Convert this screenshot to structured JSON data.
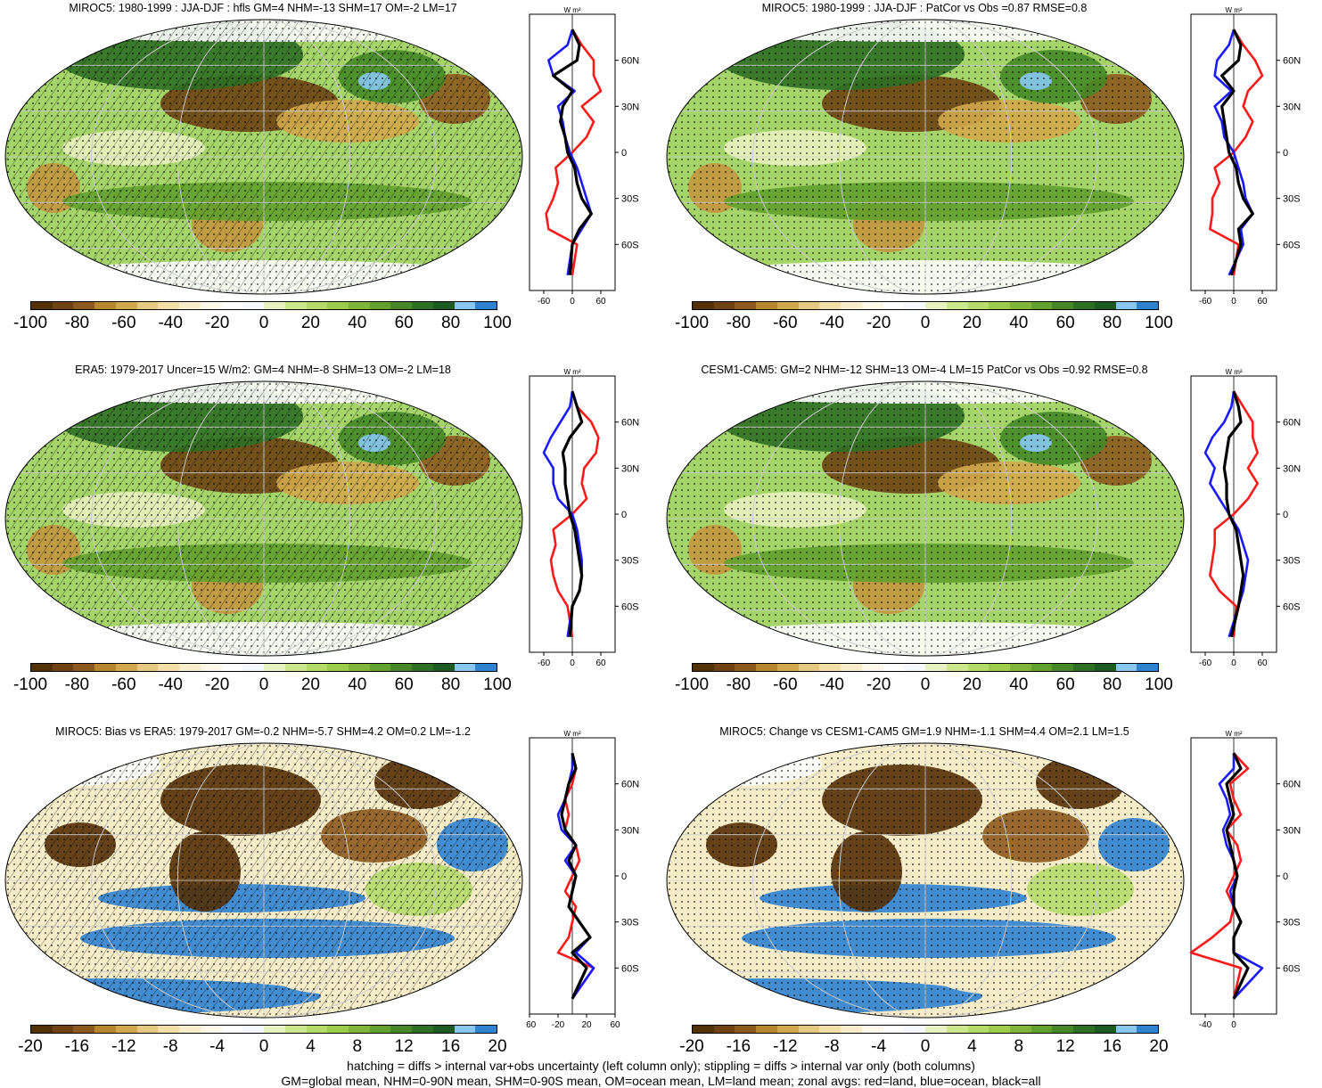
{
  "footer": {
    "line1": "hatching = diffs > internal var+obs uncertainty (left column only); stippling = diffs > internal var only (both columns)",
    "line2": "GM=global mean, NHM=0-90N mean, SHM=0-90S mean, OM=ocean mean, LM=land mean; zonal avgs: red=land, blue=ocean, black=all"
  },
  "zonal_common": {
    "units": "W m²",
    "lat_ticks": [
      "60N",
      "30N",
      "0",
      "30S",
      "60S"
    ],
    "lat_values": [
      60,
      30,
      0,
      -30,
      -60
    ]
  },
  "colors": {
    "land": "#ff1a1a",
    "ocean": "#1a1aff",
    "all": "#000000",
    "palette": [
      "#543005",
      "#6e4212",
      "#8c5a1e",
      "#b8862c",
      "#d2a84e",
      "#e6c883",
      "#f2dea6",
      "#f8edc9",
      "#fcf7e8",
      "#ffffff",
      "#f4f8ff",
      "#e8f2c0",
      "#cce88e",
      "#b5dc6b",
      "#9ccc4c",
      "#7fb63a",
      "#62a02f",
      "#468828",
      "#2f6f25",
      "#1c5a20",
      "#88c8f0",
      "#2f82d0"
    ]
  },
  "panels": [
    {
      "id": "p1",
      "title": "MIROC5: 1980-1999 : JJA-DJF : hfls GM=4 NHM=-13 SHM=17 OM=-2 LM=17",
      "colorbar_labels": [
        "-100",
        "-80",
        "-60",
        "-40",
        "-20",
        "0",
        "20",
        "40",
        "60",
        "80",
        "100"
      ],
      "zonal_xticks": [
        "-60",
        "0",
        "60"
      ]
    },
    {
      "id": "p2",
      "title": "MIROC5: 1980-1999 : JJA-DJF : PatCor vs Obs =0.87 RMSE=0.8",
      "colorbar_labels": [
        "-100",
        "-80",
        "-60",
        "-40",
        "-20",
        "0",
        "20",
        "40",
        "60",
        "80",
        "100"
      ],
      "zonal_xticks": [
        "-60",
        "0",
        "60"
      ]
    },
    {
      "id": "p3",
      "title": "ERA5: 1979-2017 Uncer=15 W/m2: GM=4 NHM=-8 SHM=13 OM=-2 LM=18",
      "colorbar_labels": [
        "-100",
        "-80",
        "-60",
        "-40",
        "-20",
        "0",
        "20",
        "40",
        "60",
        "80",
        "100"
      ],
      "zonal_xticks": [
        "-60",
        "0",
        "60"
      ]
    },
    {
      "id": "p4",
      "title": "CESM1-CAM5: GM=2 NHM=-12 SHM=13 OM=-4 LM=15 PatCor vs Obs =0.92 RMSE=0.8",
      "colorbar_labels": [
        "-100",
        "-80",
        "-60",
        "-40",
        "-20",
        "0",
        "20",
        "40",
        "60",
        "80",
        "100"
      ],
      "zonal_xticks": [
        "-60",
        "0",
        "60"
      ]
    },
    {
      "id": "p5",
      "title": "MIROC5: Bias vs ERA5: 1979-2017 GM=-0.2 NHM=-5.7 SHM=4.2 OM=0.2 LM=-1.2",
      "colorbar_labels": [
        "-20",
        "-16",
        "-12",
        "-8",
        "-4",
        "0",
        "4",
        "8",
        "12",
        "16",
        "20"
      ],
      "zonal_xticks": [
        "-60",
        "-20",
        "20",
        "60"
      ]
    },
    {
      "id": "p6",
      "title": "MIROC5: Change vs CESM1-CAM5 GM=1.9 NHM=-1.1 SHM=4.4 OM=2.1 LM=1.5",
      "colorbar_labels": [
        "-20",
        "-16",
        "-12",
        "-8",
        "-4",
        "0",
        "4",
        "8",
        "12",
        "16",
        "20"
      ],
      "zonal_xticks": [
        "-40",
        "0"
      ]
    }
  ],
  "chart_data": [
    {
      "type": "heatmap",
      "title": "MIROC5: 1980-1999 : JJA-DJF : hfls GM=4 NHM=-13 SHM=17 OM=-2 LM=17",
      "colorbar_range": [
        -100,
        100
      ],
      "series": [
        {
          "name": "land",
          "lat": [
            -80,
            -60,
            -50,
            -40,
            -30,
            -20,
            -10,
            0,
            10,
            20,
            30,
            40,
            50,
            60,
            70,
            80
          ],
          "values": [
            0,
            10,
            -50,
            -55,
            -40,
            -30,
            -35,
            0,
            30,
            45,
            20,
            60,
            45,
            45,
            20,
            0
          ]
        },
        {
          "name": "ocean",
          "lat": [
            -80,
            -60,
            -50,
            -40,
            -30,
            -20,
            -10,
            0,
            10,
            20,
            30,
            40,
            50,
            60,
            70,
            80
          ],
          "values": [
            -10,
            0,
            20,
            40,
            30,
            20,
            10,
            -5,
            -15,
            -20,
            -30,
            5,
            -40,
            -50,
            -10,
            0
          ]
        },
        {
          "name": "all",
          "lat": [
            -80,
            -60,
            -50,
            -40,
            -30,
            -20,
            -10,
            0,
            10,
            20,
            30,
            40,
            50,
            60,
            70,
            80
          ],
          "values": [
            -5,
            0,
            15,
            40,
            20,
            10,
            5,
            -10,
            -15,
            -25,
            -20,
            0,
            -40,
            10,
            15,
            0
          ]
        }
      ]
    },
    {
      "type": "heatmap",
      "title": "MIROC5: 1980-1999 : JJA-DJF : PatCor vs Obs =0.87 RMSE=0.8",
      "colorbar_range": [
        -100,
        100
      ],
      "series": [
        {
          "name": "land",
          "lat": [
            -80,
            -60,
            -50,
            -40,
            -30,
            -20,
            -10,
            0,
            10,
            20,
            30,
            40,
            50,
            60,
            70,
            80
          ],
          "values": [
            0,
            10,
            -50,
            -45,
            -45,
            -30,
            -40,
            0,
            25,
            40,
            20,
            30,
            60,
            45,
            20,
            0
          ]
        },
        {
          "name": "ocean",
          "lat": [
            -80,
            -60,
            -50,
            -40,
            -30,
            -20,
            -10,
            0,
            10,
            20,
            30,
            40,
            50,
            60,
            70,
            80
          ],
          "values": [
            -10,
            20,
            15,
            40,
            25,
            20,
            10,
            0,
            -20,
            -25,
            -40,
            -5,
            -40,
            -35,
            -10,
            0
          ]
        },
        {
          "name": "all",
          "lat": [
            -80,
            -60,
            -50,
            -40,
            -30,
            -20,
            -10,
            0,
            10,
            20,
            30,
            40,
            50,
            60,
            70,
            80
          ],
          "values": [
            -5,
            15,
            10,
            40,
            20,
            10,
            5,
            -10,
            -15,
            -20,
            -25,
            0,
            -25,
            10,
            15,
            0
          ]
        }
      ]
    },
    {
      "type": "heatmap",
      "title": "ERA5: 1979-2017 Uncer=15 W/m2: GM=4 NHM=-8 SHM=13 OM=-2 LM=18",
      "colorbar_range": [
        -100,
        100
      ],
      "series": [
        {
          "name": "land",
          "lat": [
            -80,
            -60,
            -50,
            -40,
            -30,
            -20,
            -10,
            0,
            10,
            20,
            30,
            40,
            50,
            60,
            70,
            80
          ],
          "values": [
            0,
            -10,
            -30,
            -40,
            -45,
            -35,
            -40,
            0,
            30,
            20,
            25,
            50,
            55,
            40,
            10,
            0
          ]
        },
        {
          "name": "ocean",
          "lat": [
            -80,
            -60,
            -50,
            -40,
            -30,
            -20,
            -10,
            0,
            10,
            20,
            30,
            40,
            50,
            60,
            70,
            80
          ],
          "values": [
            -10,
            0,
            15,
            20,
            20,
            15,
            10,
            0,
            -30,
            -40,
            -40,
            -60,
            -45,
            -25,
            -5,
            0
          ]
        },
        {
          "name": "all",
          "lat": [
            -80,
            -60,
            -50,
            -40,
            -30,
            -20,
            -10,
            0,
            10,
            20,
            30,
            40,
            50,
            60,
            70,
            80
          ],
          "values": [
            -5,
            0,
            15,
            20,
            15,
            10,
            5,
            -5,
            -10,
            -15,
            -15,
            -20,
            -5,
            20,
            10,
            0
          ]
        }
      ]
    },
    {
      "type": "heatmap",
      "title": "CESM1-CAM5: GM=2 NHM=-12 SHM=13 OM=-4 LM=15 PatCor vs Obs =0.92 RMSE=0.8",
      "colorbar_range": [
        -100,
        100
      ],
      "series": [
        {
          "name": "land",
          "lat": [
            -80,
            -60,
            -50,
            -40,
            -30,
            -20,
            -10,
            0,
            10,
            20,
            30,
            40,
            50,
            60,
            70,
            80
          ],
          "values": [
            0,
            5,
            -30,
            -50,
            -45,
            -40,
            -40,
            0,
            30,
            50,
            30,
            50,
            40,
            40,
            20,
            0
          ]
        },
        {
          "name": "ocean",
          "lat": [
            -80,
            -60,
            -50,
            -40,
            -30,
            -20,
            -10,
            0,
            10,
            20,
            30,
            40,
            50,
            60,
            70,
            80
          ],
          "values": [
            -10,
            10,
            20,
            25,
            30,
            20,
            10,
            -10,
            -30,
            -50,
            -40,
            -60,
            -45,
            -20,
            -5,
            0
          ]
        },
        {
          "name": "all",
          "lat": [
            -80,
            -60,
            -50,
            -40,
            -30,
            -20,
            -10,
            0,
            10,
            20,
            30,
            40,
            50,
            60,
            70,
            80
          ],
          "values": [
            -5,
            10,
            15,
            20,
            15,
            10,
            5,
            -10,
            -15,
            -15,
            -20,
            -15,
            -10,
            15,
            10,
            0
          ]
        }
      ]
    },
    {
      "type": "heatmap",
      "title": "MIROC5: Bias vs ERA5: 1979-2017 GM=-0.2 NHM=-5.7 SHM=4.2 OM=0.2 LM=-1.2",
      "colorbar_range": [
        -20,
        20
      ],
      "series": [
        {
          "name": "land",
          "lat": [
            -80,
            -60,
            -50,
            -40,
            -30,
            -20,
            -10,
            0,
            10,
            20,
            30,
            40,
            50,
            60,
            70,
            80
          ],
          "values": [
            0,
            30,
            -20,
            -5,
            0,
            5,
            -10,
            0,
            10,
            5,
            -10,
            -5,
            -10,
            0,
            5,
            0
          ]
        },
        {
          "name": "ocean",
          "lat": [
            -80,
            -60,
            -50,
            -40,
            -30,
            -20,
            -10,
            0,
            10,
            20,
            30,
            40,
            50,
            60,
            70,
            80
          ],
          "values": [
            0,
            30,
            5,
            25,
            10,
            -5,
            0,
            5,
            -10,
            5,
            -15,
            -20,
            -10,
            -5,
            0,
            0
          ]
        },
        {
          "name": "all",
          "lat": [
            -80,
            -60,
            -50,
            -40,
            -30,
            -20,
            -10,
            0,
            10,
            20,
            30,
            40,
            50,
            60,
            70,
            80
          ],
          "values": [
            0,
            20,
            0,
            25,
            10,
            -5,
            0,
            5,
            -5,
            5,
            -10,
            -15,
            -10,
            -5,
            5,
            0
          ]
        }
      ]
    },
    {
      "type": "heatmap",
      "title": "MIROC5: Change vs CESM1-CAM5 GM=1.9 NHM=-1.1 SHM=4.4 OM=2.1 LM=1.5",
      "colorbar_range": [
        -20,
        20
      ],
      "series": [
        {
          "name": "land",
          "lat": [
            -80,
            -60,
            -50,
            -40,
            -30,
            -20,
            -10,
            0,
            10,
            20,
            30,
            40,
            50,
            60,
            70,
            80
          ],
          "values": [
            0,
            10,
            -60,
            -30,
            -5,
            0,
            -10,
            0,
            10,
            5,
            -10,
            10,
            0,
            -5,
            20,
            0
          ]
        },
        {
          "name": "ocean",
          "lat": [
            -80,
            -60,
            -50,
            -40,
            -30,
            -20,
            -10,
            0,
            10,
            20,
            30,
            40,
            50,
            60,
            70,
            80
          ],
          "values": [
            0,
            40,
            0,
            0,
            10,
            0,
            -5,
            5,
            0,
            -10,
            -15,
            -5,
            -10,
            -20,
            0,
            0
          ]
        },
        {
          "name": "all",
          "lat": [
            -80,
            -60,
            -50,
            -40,
            -30,
            -20,
            -10,
            0,
            10,
            20,
            30,
            40,
            50,
            60,
            70,
            80
          ],
          "values": [
            0,
            20,
            0,
            0,
            10,
            0,
            0,
            5,
            0,
            -5,
            -10,
            0,
            -5,
            -10,
            10,
            0
          ]
        }
      ]
    }
  ]
}
